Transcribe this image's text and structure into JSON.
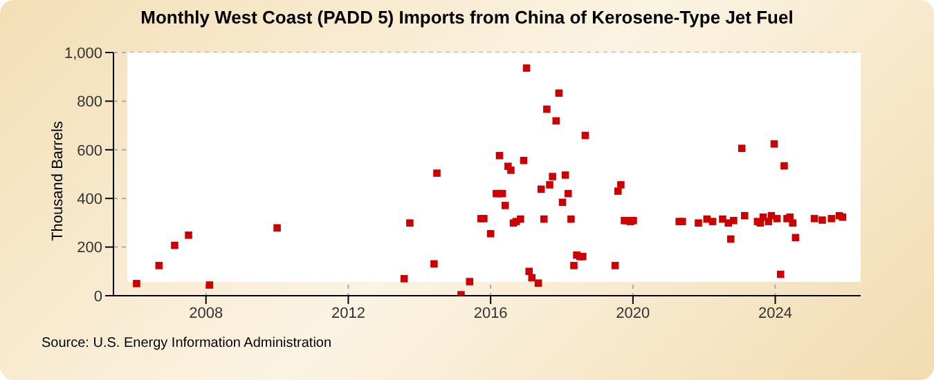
{
  "chart_data": {
    "type": "scatter",
    "title": "Monthly West Coast (PADD 5) Imports from China of Kerosene-Type Jet Fuel",
    "ylabel": "Thousand Barrels",
    "annotations": [
      "Source: U.S. Energy Information Administration"
    ],
    "x": [
      2006.05,
      2006.68,
      2007.12,
      2007.51,
      2008.1,
      2010.0,
      2013.57,
      2013.73,
      2014.41,
      2014.49,
      2015.17,
      2015.41,
      2015.73,
      2015.81,
      2016.0,
      2016.16,
      2016.24,
      2016.25,
      2016.33,
      2016.41,
      2016.49,
      2016.57,
      2016.64,
      2016.72,
      2016.84,
      2016.93,
      2017.01,
      2017.08,
      2017.16,
      2017.34,
      2017.42,
      2017.5,
      2017.58,
      2017.66,
      2017.74,
      2017.84,
      2017.92,
      2018.02,
      2018.1,
      2018.18,
      2018.26,
      2018.34,
      2018.42,
      2018.51,
      2018.59,
      2018.66,
      2019.5,
      2019.58,
      2019.66,
      2019.76,
      2019.84,
      2019.93,
      2020.01,
      2021.3,
      2021.39,
      2021.84,
      2022.08,
      2022.24,
      2022.52,
      2022.68,
      2022.75,
      2022.83,
      2023.06,
      2023.14,
      2023.5,
      2023.58,
      2023.66,
      2023.81,
      2023.89,
      2023.97,
      2024.05,
      2024.15,
      2024.25,
      2024.33,
      2024.41,
      2024.49,
      2024.57,
      2025.1,
      2025.32,
      2025.58,
      2025.8,
      2025.89
    ],
    "series": [
      {
        "color": "#cc0000",
        "values": [
          50,
          124,
          207,
          249,
          44,
          279,
          70,
          299,
          131,
          504,
          4,
          58,
          317,
          317,
          255,
          420,
          420,
          576,
          420,
          371,
          532,
          516,
          299,
          305,
          315,
          556,
          936,
          100,
          74,
          52,
          438,
          315,
          767,
          456,
          490,
          719,
          833,
          384,
          496,
          420,
          315,
          124,
          167,
          161,
          161,
          659,
          124,
          430,
          456,
          309,
          309,
          305,
          309,
          305,
          305,
          299,
          315,
          305,
          315,
          299,
          233,
          309,
          606,
          329,
          305,
          299,
          323,
          305,
          329,
          624,
          317,
          88,
          534,
          317,
          323,
          299,
          239,
          317,
          311,
          317,
          329,
          323
        ]
      }
    ],
    "xlim": [
      2005.4,
      2026.4
    ],
    "xticks": [
      2008,
      2012,
      2016,
      2020,
      2024
    ],
    "ylim": [
      0,
      1000
    ],
    "yticks": [
      0,
      200,
      400,
      600,
      800,
      {
        "value": 1000,
        "label": "1,000"
      }
    ],
    "grid": true,
    "marker": "square",
    "legend": false
  }
}
